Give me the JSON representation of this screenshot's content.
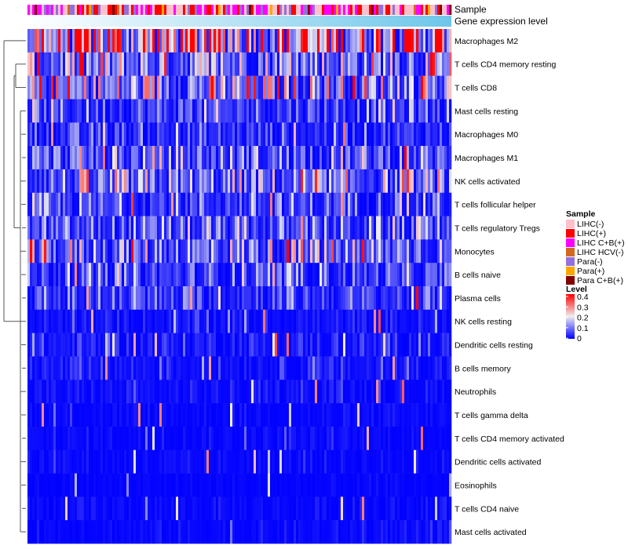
{
  "chart_data": {
    "type": "heatmap",
    "title": "",
    "annotations": [
      "Sample",
      "Gene expression level"
    ],
    "rows": [
      {
        "name": "Macrophages M2",
        "mean": 0.3
      },
      {
        "name": "T cells CD4 memory resting",
        "mean": 0.14
      },
      {
        "name": "T cells CD8",
        "mean": 0.15
      },
      {
        "name": "Mast cells resting",
        "mean": 0.07
      },
      {
        "name": "Macrophages M0",
        "mean": 0.05
      },
      {
        "name": "Macrophages M1",
        "mean": 0.09
      },
      {
        "name": "NK cells activated",
        "mean": 0.1
      },
      {
        "name": "T cells follicular helper",
        "mean": 0.07
      },
      {
        "name": "T cells regulatory  Tregs",
        "mean": 0.07
      },
      {
        "name": "Monocytes",
        "mean": 0.12
      },
      {
        "name": "B cells naive",
        "mean": 0.06
      },
      {
        "name": "Plasma cells",
        "mean": 0.06
      },
      {
        "name": "NK cells resting",
        "mean": 0.02
      },
      {
        "name": "Dendritic cells resting",
        "mean": 0.03
      },
      {
        "name": "B cells memory",
        "mean": 0.025
      },
      {
        "name": "Neutrophils",
        "mean": 0.015
      },
      {
        "name": "T cells gamma delta",
        "mean": 0.01
      },
      {
        "name": "T cells CD4 memory activated",
        "mean": 0.01
      },
      {
        "name": "Dendritic cells activated",
        "mean": 0.01
      },
      {
        "name": "Eosinophils",
        "mean": 0.005
      },
      {
        "name": "T cells CD4 naive",
        "mean": 0.01
      },
      {
        "name": "Mast cells activated",
        "mean": 0.01
      }
    ],
    "legend_sample": {
      "title": "Sample",
      "entries": [
        {
          "label": "LIHC(-)",
          "color": "#ffc0cb"
        },
        {
          "label": "LIHC(+)",
          "color": "#ff0000"
        },
        {
          "label": "LIHC C+B(+)",
          "color": "#ff00ff"
        },
        {
          "label": "LIHC HCV(-)",
          "color": "#d2691e"
        },
        {
          "label": "Para(-)",
          "color": "#9370db"
        },
        {
          "label": "Para(+)",
          "color": "#ffa500"
        },
        {
          "label": "Para C+B(+)",
          "color": "#800000"
        }
      ]
    },
    "legend_level": {
      "title": "Level",
      "ticks": [
        "0.4",
        "0.3",
        "0.2",
        "0.1",
        "0"
      ],
      "range": [
        0,
        0.4
      ],
      "colors": {
        "low": "#0000ff",
        "mid": "#eeeeee",
        "high": "#ff0000"
      }
    },
    "expression_colors": {
      "low": "#ffffff",
      "high": "#6ec6ea"
    }
  }
}
